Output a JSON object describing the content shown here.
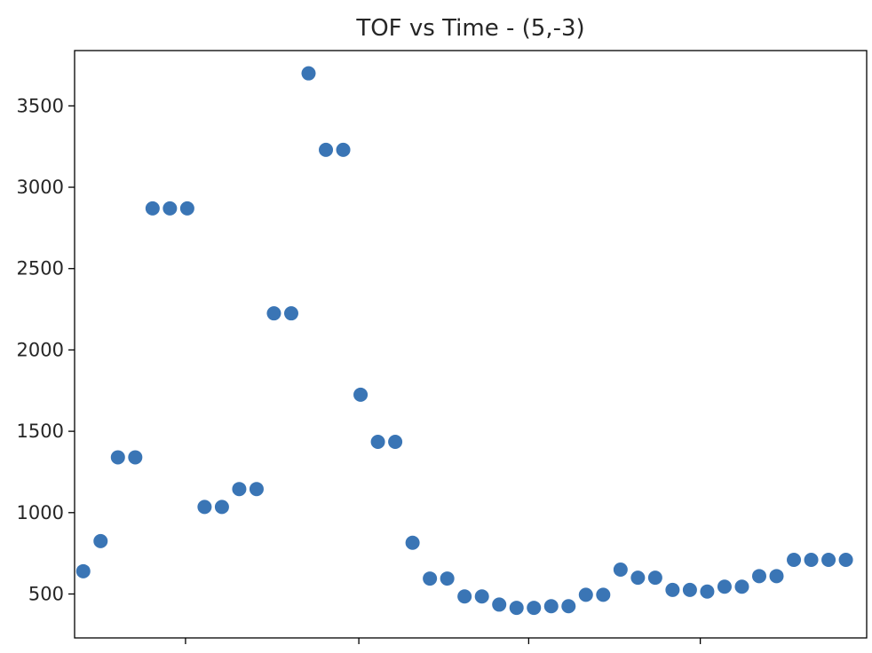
{
  "chart_data": {
    "type": "scatter",
    "title": "TOF vs Time - (5,-3)",
    "xlabel": "",
    "ylabel": "",
    "ylim": [
      230,
      3840
    ],
    "xlim": [
      -0.5,
      45.2
    ],
    "x_tick_labels": [
      "",
      "",
      "",
      ""
    ],
    "x_ticks": [
      5.9,
      15.9,
      25.7,
      35.6
    ],
    "y_ticks": [
      500,
      1000,
      1500,
      2000,
      2500,
      3000,
      3500
    ],
    "y_tick_labels": [
      "500",
      "1000",
      "1500",
      "2000",
      "2500",
      "3000",
      "3500"
    ],
    "grid": false,
    "marker_color": "#3a75b5",
    "series": [
      {
        "x": [
          0,
          1,
          2,
          3,
          4,
          5,
          6,
          7,
          8,
          9,
          10,
          11,
          12,
          13,
          14,
          15,
          16,
          17,
          18,
          19,
          20,
          21,
          22,
          23,
          24,
          25,
          26,
          27,
          28,
          29,
          30,
          31,
          32,
          33,
          34,
          35,
          36,
          37,
          38,
          39,
          40,
          41,
          42,
          43,
          44
        ],
        "values": [
          640,
          825,
          1340,
          1340,
          2870,
          2870,
          2870,
          1035,
          1035,
          1145,
          1145,
          2225,
          2225,
          3700,
          3230,
          3230,
          1725,
          1435,
          1435,
          815,
          595,
          595,
          485,
          485,
          435,
          415,
          415,
          425,
          425,
          495,
          495,
          650,
          600,
          600,
          525,
          525,
          515,
          545,
          545,
          610,
          610,
          710,
          710,
          710,
          710
        ]
      }
    ]
  }
}
